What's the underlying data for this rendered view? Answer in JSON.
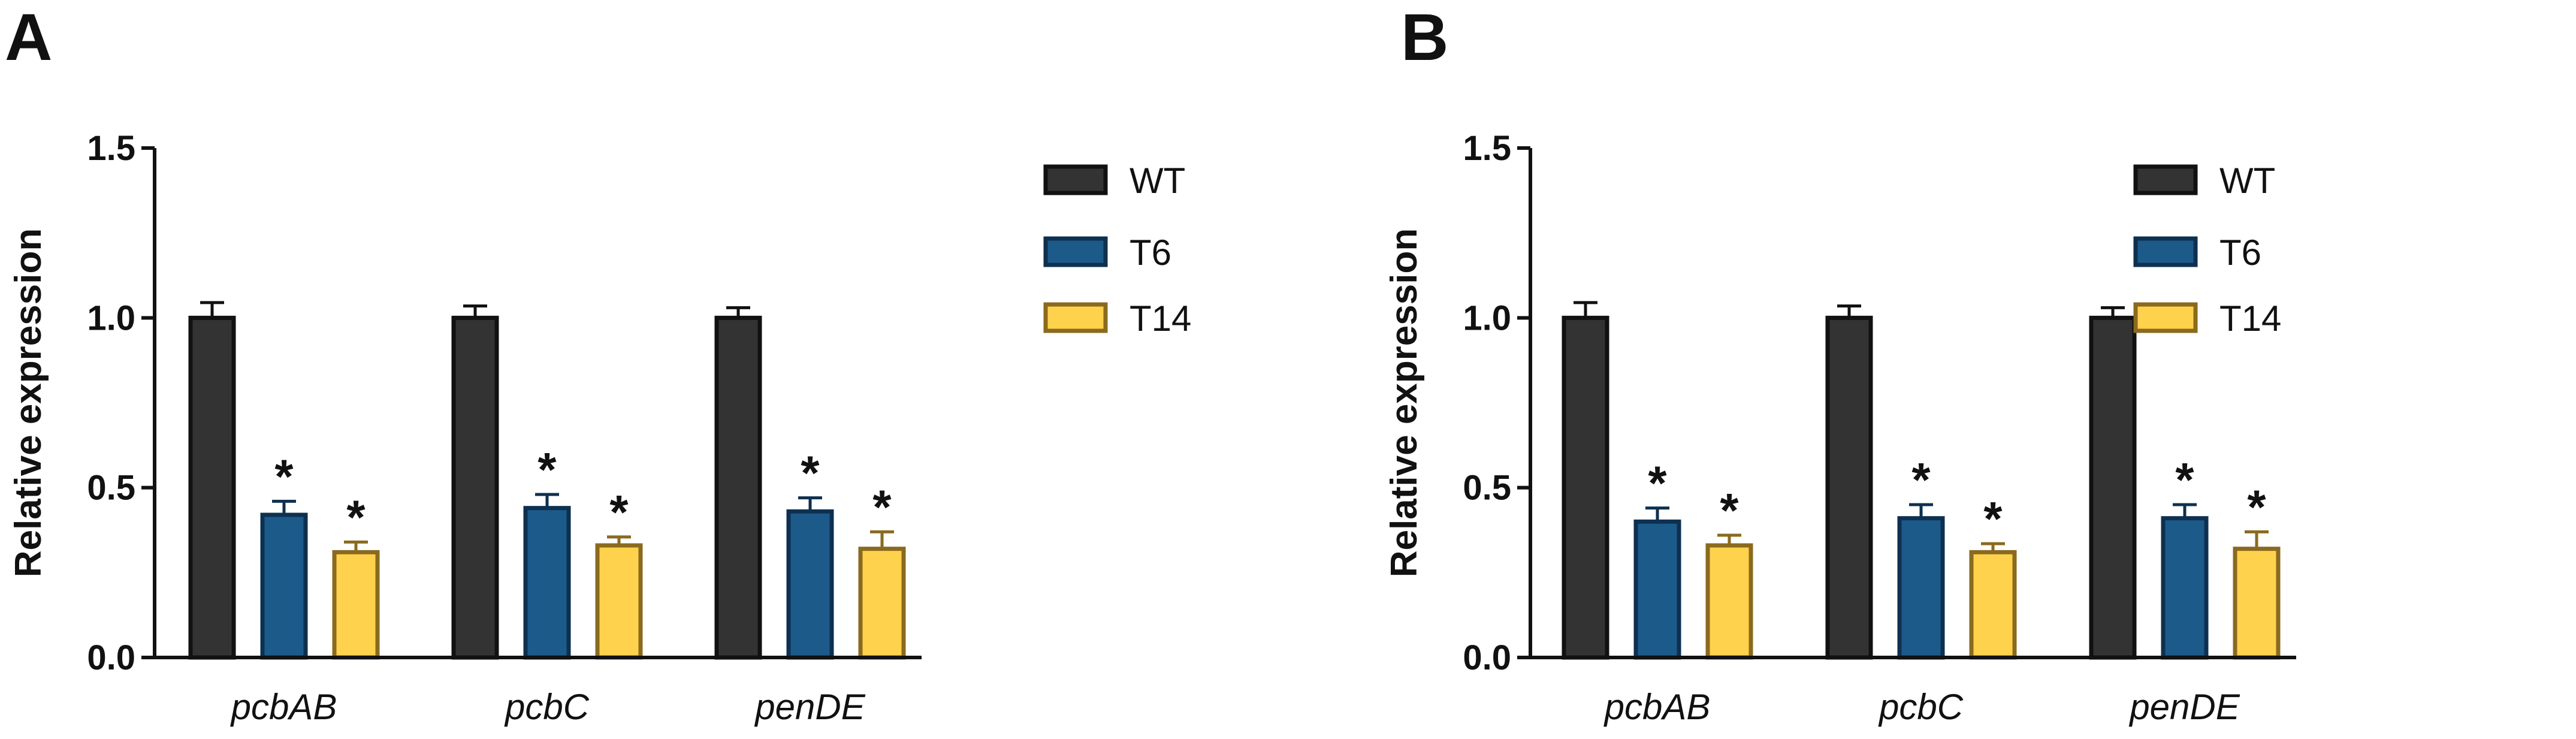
{
  "chart_data": [
    {
      "panel": "A",
      "type": "bar",
      "ylabel": "Relative expression",
      "xlabel": "",
      "ylim": [
        0,
        1.5
      ],
      "yticks": [
        "0.0",
        "0.5",
        "1.0",
        "1.5"
      ],
      "categories": [
        "pcbAB",
        "pcbC",
        "penDE"
      ],
      "series": [
        {
          "name": "WT",
          "fill": "#333333",
          "stroke": "#111111",
          "values": [
            1.0,
            1.0,
            1.0
          ],
          "errors": [
            0.045,
            0.035,
            0.03
          ],
          "significance": [
            "",
            "",
            ""
          ]
        },
        {
          "name": "T6",
          "fill": "#1c5a8a",
          "stroke": "#0e3050",
          "values": [
            0.42,
            0.44,
            0.43
          ],
          "errors": [
            0.04,
            0.04,
            0.04
          ],
          "significance": [
            "*",
            "*",
            "*"
          ]
        },
        {
          "name": "T14",
          "fill": "#ffd24d",
          "stroke": "#8a6a1e",
          "values": [
            0.31,
            0.33,
            0.32
          ],
          "errors": [
            0.03,
            0.025,
            0.05
          ],
          "significance": [
            "*",
            "*",
            "*"
          ]
        }
      ],
      "legend_position": "right"
    },
    {
      "panel": "B",
      "type": "bar",
      "ylabel": "Relative expression",
      "xlabel": "",
      "ylim": [
        0,
        1.5
      ],
      "yticks": [
        "0.0",
        "0.5",
        "1.0",
        "1.5"
      ],
      "categories": [
        "pcbAB",
        "pcbC",
        "penDE"
      ],
      "series": [
        {
          "name": "WT",
          "fill": "#333333",
          "stroke": "#111111",
          "values": [
            1.0,
            1.0,
            1.0
          ],
          "errors": [
            0.045,
            0.035,
            0.03
          ],
          "significance": [
            "",
            "",
            ""
          ]
        },
        {
          "name": "T6",
          "fill": "#1c5a8a",
          "stroke": "#0e3050",
          "values": [
            0.4,
            0.41,
            0.41
          ],
          "errors": [
            0.04,
            0.04,
            0.04
          ],
          "significance": [
            "*",
            "*",
            "*"
          ]
        },
        {
          "name": "T14",
          "fill": "#ffd24d",
          "stroke": "#8a6a1e",
          "values": [
            0.33,
            0.31,
            0.32
          ],
          "errors": [
            0.03,
            0.025,
            0.05
          ],
          "significance": [
            "*",
            "*",
            "*"
          ]
        }
      ],
      "legend_position": "right"
    }
  ]
}
